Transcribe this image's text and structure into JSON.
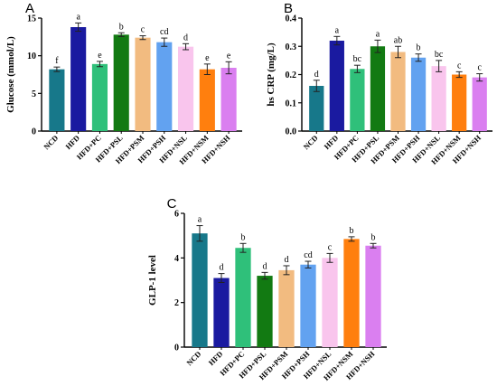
{
  "colors": [
    "#17788a",
    "#1a1aa0",
    "#2fc07a",
    "#127a12",
    "#f2bb80",
    "#62a2f0",
    "#f9c5ed",
    "#ff7f0e",
    "#da7ff0"
  ],
  "chart_data": [
    {
      "type": "bar",
      "panel_label": "A",
      "ylabel": "Glucose (mmol/L)",
      "ylim": [
        0,
        15
      ],
      "yticks": [
        0,
        5,
        10,
        15
      ],
      "categories": [
        "NCD",
        "HFD",
        "HFD+PC",
        "HFD+PSL",
        "HFD+PSM",
        "HFD+PSH",
        "HFD+NSL",
        "HFD+NSM",
        "HFD+NSH"
      ],
      "values": [
        8.2,
        13.8,
        8.9,
        12.8,
        12.4,
        11.8,
        11.2,
        8.2,
        8.4
      ],
      "errors": [
        0.3,
        0.55,
        0.35,
        0.25,
        0.25,
        0.55,
        0.4,
        0.7,
        0.8
      ],
      "letters": [
        "f",
        "a",
        "e",
        "b",
        "c",
        "cd",
        "d",
        "e",
        "e"
      ]
    },
    {
      "type": "bar",
      "panel_label": "B",
      "ylabel": "hs CRP (mg/L)",
      "ylim": [
        0,
        0.4
      ],
      "yticks": [
        0.0,
        0.1,
        0.2,
        0.3,
        0.4
      ],
      "categories": [
        "NCD",
        "HFD",
        "HFD+PC",
        "HFD+PSL",
        "HFD+PSM",
        "HFD+PSH",
        "HFD+NSL",
        "HFD+NSM",
        "HFD+NSH"
      ],
      "values": [
        0.16,
        0.32,
        0.22,
        0.3,
        0.28,
        0.26,
        0.23,
        0.2,
        0.19
      ],
      "errors": [
        0.02,
        0.015,
        0.013,
        0.022,
        0.02,
        0.013,
        0.02,
        0.01,
        0.013
      ],
      "letters": [
        "d",
        "a",
        "bc",
        "a",
        "ab",
        "b",
        "bc",
        "c",
        "c"
      ]
    },
    {
      "type": "bar",
      "panel_label": "C",
      "ylabel": "GLP-1 level",
      "ylim": [
        0,
        6
      ],
      "yticks": [
        0,
        2,
        4,
        6
      ],
      "categories": [
        "NCD",
        "HFD",
        "HFD+PC",
        "HFD+PSL",
        "HFD+PSM",
        "HFD+PSH",
        "HFD+NSL",
        "HFD+NSM",
        "HFD+NSH"
      ],
      "values": [
        5.1,
        3.1,
        4.45,
        3.2,
        3.45,
        3.7,
        4.0,
        4.85,
        4.55
      ],
      "errors": [
        0.35,
        0.2,
        0.2,
        0.15,
        0.2,
        0.15,
        0.2,
        0.1,
        0.1
      ],
      "letters": [
        "a",
        "d",
        "b",
        "d",
        "d",
        "cd",
        "c",
        "b",
        "b"
      ]
    }
  ]
}
